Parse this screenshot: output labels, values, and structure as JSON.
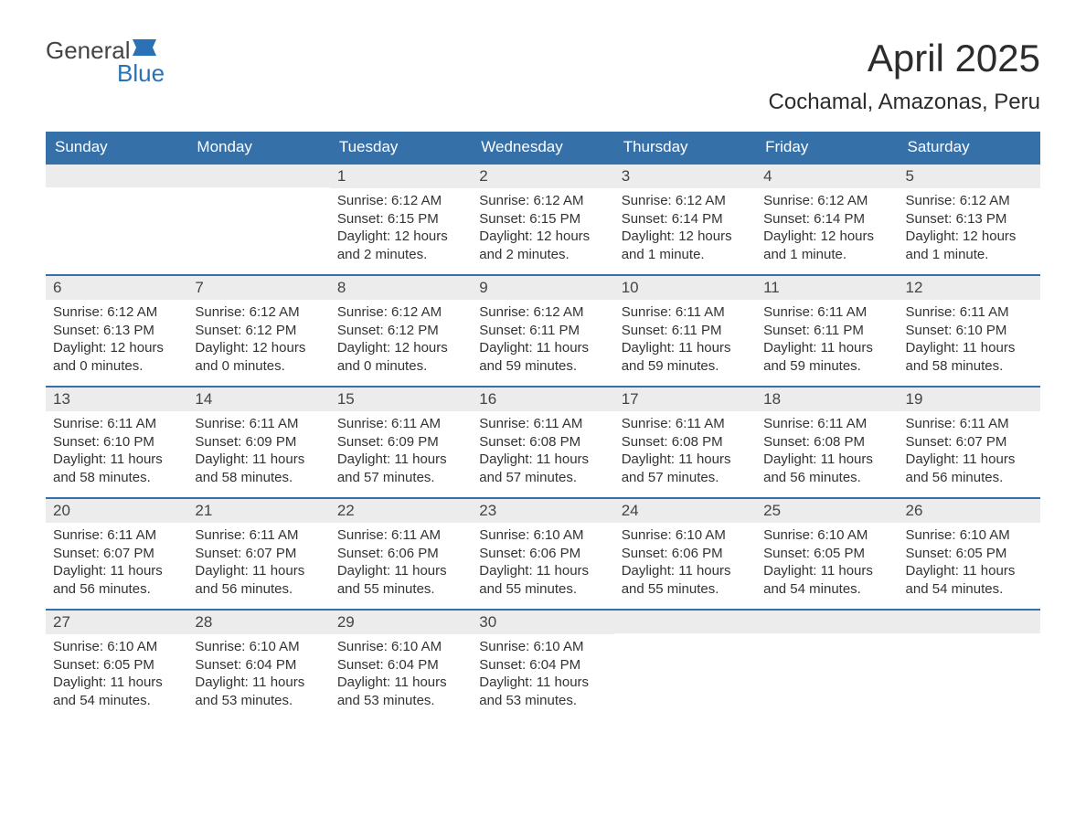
{
  "logo": {
    "word1": "General",
    "word2": "Blue",
    "word1_color": "#444444",
    "word2_color": "#2a72b5",
    "flag_color": "#2a72b5"
  },
  "title": {
    "month_year": "April 2025",
    "location": "Cochamal, Amazonas, Peru"
  },
  "colors": {
    "header_bg": "#3670a8",
    "header_text": "#ffffff",
    "daynum_bg": "#ececec",
    "row_border": "#3670a8",
    "text": "#333333",
    "background": "#ffffff"
  },
  "typography": {
    "month_title_size": 42,
    "location_size": 24,
    "header_size": 17,
    "daynum_size": 17,
    "body_size": 15
  },
  "calendar": {
    "type": "table",
    "day_labels": [
      "Sunday",
      "Monday",
      "Tuesday",
      "Wednesday",
      "Thursday",
      "Friday",
      "Saturday"
    ],
    "weeks": [
      [
        null,
        null,
        {
          "num": "1",
          "sunrise": "Sunrise: 6:12 AM",
          "sunset": "Sunset: 6:15 PM",
          "daylight1": "Daylight: 12 hours",
          "daylight2": "and 2 minutes."
        },
        {
          "num": "2",
          "sunrise": "Sunrise: 6:12 AM",
          "sunset": "Sunset: 6:15 PM",
          "daylight1": "Daylight: 12 hours",
          "daylight2": "and 2 minutes."
        },
        {
          "num": "3",
          "sunrise": "Sunrise: 6:12 AM",
          "sunset": "Sunset: 6:14 PM",
          "daylight1": "Daylight: 12 hours",
          "daylight2": "and 1 minute."
        },
        {
          "num": "4",
          "sunrise": "Sunrise: 6:12 AM",
          "sunset": "Sunset: 6:14 PM",
          "daylight1": "Daylight: 12 hours",
          "daylight2": "and 1 minute."
        },
        {
          "num": "5",
          "sunrise": "Sunrise: 6:12 AM",
          "sunset": "Sunset: 6:13 PM",
          "daylight1": "Daylight: 12 hours",
          "daylight2": "and 1 minute."
        }
      ],
      [
        {
          "num": "6",
          "sunrise": "Sunrise: 6:12 AM",
          "sunset": "Sunset: 6:13 PM",
          "daylight1": "Daylight: 12 hours",
          "daylight2": "and 0 minutes."
        },
        {
          "num": "7",
          "sunrise": "Sunrise: 6:12 AM",
          "sunset": "Sunset: 6:12 PM",
          "daylight1": "Daylight: 12 hours",
          "daylight2": "and 0 minutes."
        },
        {
          "num": "8",
          "sunrise": "Sunrise: 6:12 AM",
          "sunset": "Sunset: 6:12 PM",
          "daylight1": "Daylight: 12 hours",
          "daylight2": "and 0 minutes."
        },
        {
          "num": "9",
          "sunrise": "Sunrise: 6:12 AM",
          "sunset": "Sunset: 6:11 PM",
          "daylight1": "Daylight: 11 hours",
          "daylight2": "and 59 minutes."
        },
        {
          "num": "10",
          "sunrise": "Sunrise: 6:11 AM",
          "sunset": "Sunset: 6:11 PM",
          "daylight1": "Daylight: 11 hours",
          "daylight2": "and 59 minutes."
        },
        {
          "num": "11",
          "sunrise": "Sunrise: 6:11 AM",
          "sunset": "Sunset: 6:11 PM",
          "daylight1": "Daylight: 11 hours",
          "daylight2": "and 59 minutes."
        },
        {
          "num": "12",
          "sunrise": "Sunrise: 6:11 AM",
          "sunset": "Sunset: 6:10 PM",
          "daylight1": "Daylight: 11 hours",
          "daylight2": "and 58 minutes."
        }
      ],
      [
        {
          "num": "13",
          "sunrise": "Sunrise: 6:11 AM",
          "sunset": "Sunset: 6:10 PM",
          "daylight1": "Daylight: 11 hours",
          "daylight2": "and 58 minutes."
        },
        {
          "num": "14",
          "sunrise": "Sunrise: 6:11 AM",
          "sunset": "Sunset: 6:09 PM",
          "daylight1": "Daylight: 11 hours",
          "daylight2": "and 58 minutes."
        },
        {
          "num": "15",
          "sunrise": "Sunrise: 6:11 AM",
          "sunset": "Sunset: 6:09 PM",
          "daylight1": "Daylight: 11 hours",
          "daylight2": "and 57 minutes."
        },
        {
          "num": "16",
          "sunrise": "Sunrise: 6:11 AM",
          "sunset": "Sunset: 6:08 PM",
          "daylight1": "Daylight: 11 hours",
          "daylight2": "and 57 minutes."
        },
        {
          "num": "17",
          "sunrise": "Sunrise: 6:11 AM",
          "sunset": "Sunset: 6:08 PM",
          "daylight1": "Daylight: 11 hours",
          "daylight2": "and 57 minutes."
        },
        {
          "num": "18",
          "sunrise": "Sunrise: 6:11 AM",
          "sunset": "Sunset: 6:08 PM",
          "daylight1": "Daylight: 11 hours",
          "daylight2": "and 56 minutes."
        },
        {
          "num": "19",
          "sunrise": "Sunrise: 6:11 AM",
          "sunset": "Sunset: 6:07 PM",
          "daylight1": "Daylight: 11 hours",
          "daylight2": "and 56 minutes."
        }
      ],
      [
        {
          "num": "20",
          "sunrise": "Sunrise: 6:11 AM",
          "sunset": "Sunset: 6:07 PM",
          "daylight1": "Daylight: 11 hours",
          "daylight2": "and 56 minutes."
        },
        {
          "num": "21",
          "sunrise": "Sunrise: 6:11 AM",
          "sunset": "Sunset: 6:07 PM",
          "daylight1": "Daylight: 11 hours",
          "daylight2": "and 56 minutes."
        },
        {
          "num": "22",
          "sunrise": "Sunrise: 6:11 AM",
          "sunset": "Sunset: 6:06 PM",
          "daylight1": "Daylight: 11 hours",
          "daylight2": "and 55 minutes."
        },
        {
          "num": "23",
          "sunrise": "Sunrise: 6:10 AM",
          "sunset": "Sunset: 6:06 PM",
          "daylight1": "Daylight: 11 hours",
          "daylight2": "and 55 minutes."
        },
        {
          "num": "24",
          "sunrise": "Sunrise: 6:10 AM",
          "sunset": "Sunset: 6:06 PM",
          "daylight1": "Daylight: 11 hours",
          "daylight2": "and 55 minutes."
        },
        {
          "num": "25",
          "sunrise": "Sunrise: 6:10 AM",
          "sunset": "Sunset: 6:05 PM",
          "daylight1": "Daylight: 11 hours",
          "daylight2": "and 54 minutes."
        },
        {
          "num": "26",
          "sunrise": "Sunrise: 6:10 AM",
          "sunset": "Sunset: 6:05 PM",
          "daylight1": "Daylight: 11 hours",
          "daylight2": "and 54 minutes."
        }
      ],
      [
        {
          "num": "27",
          "sunrise": "Sunrise: 6:10 AM",
          "sunset": "Sunset: 6:05 PM",
          "daylight1": "Daylight: 11 hours",
          "daylight2": "and 54 minutes."
        },
        {
          "num": "28",
          "sunrise": "Sunrise: 6:10 AM",
          "sunset": "Sunset: 6:04 PM",
          "daylight1": "Daylight: 11 hours",
          "daylight2": "and 53 minutes."
        },
        {
          "num": "29",
          "sunrise": "Sunrise: 6:10 AM",
          "sunset": "Sunset: 6:04 PM",
          "daylight1": "Daylight: 11 hours",
          "daylight2": "and 53 minutes."
        },
        {
          "num": "30",
          "sunrise": "Sunrise: 6:10 AM",
          "sunset": "Sunset: 6:04 PM",
          "daylight1": "Daylight: 11 hours",
          "daylight2": "and 53 minutes."
        },
        null,
        null,
        null
      ]
    ]
  }
}
